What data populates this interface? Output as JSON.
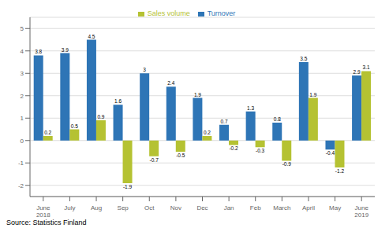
{
  "chart_data": {
    "type": "bar",
    "categories": [
      "June\n2018",
      "July",
      "Aug",
      "Sep",
      "Oct",
      "Nov",
      "Dec",
      "Jan",
      "Feb",
      "March",
      "April",
      "May",
      "June\n2019"
    ],
    "series": [
      {
        "name": "Turnover",
        "color": "#2e75b6",
        "values": [
          3.8,
          3.9,
          4.5,
          1.6,
          3.0,
          2.4,
          1.9,
          0.7,
          1.3,
          0.8,
          3.5,
          -0.4,
          2.9
        ]
      },
      {
        "name": "Sales volume",
        "color": "#b5c232",
        "values": [
          0.2,
          0.5,
          0.9,
          -1.9,
          -0.7,
          -0.5,
          0.2,
          -0.2,
          -0.3,
          -0.9,
          1.9,
          -1.2,
          3.1
        ]
      }
    ],
    "ylim": [
      -2.5,
      5.5
    ],
    "yticks": [
      -2,
      -1,
      0,
      1,
      2,
      3,
      4,
      5
    ],
    "grid": true,
    "legend": "top",
    "data_labels": true,
    "annotations": [
      "Source: Statistics Finland"
    ]
  }
}
